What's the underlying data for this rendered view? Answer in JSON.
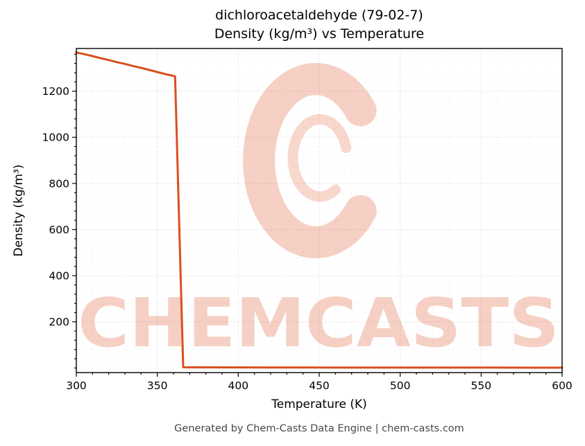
{
  "header": {
    "title_line1": "dichloroacetaldehyde (79-02-7)",
    "title_line2": "Density (kg/m³) vs Temperature"
  },
  "footer": {
    "text": "Generated by Chem-Casts Data Engine | chem-casts.com"
  },
  "watermark": {
    "text": "CHEMCASTS",
    "color": "#e0572b",
    "opacity": 0.28
  },
  "chart_data": {
    "type": "line",
    "title": "dichloroacetaldehyde (79-02-7)\nDensity (kg/m³) vs Temperature",
    "xlabel": "Temperature (K)",
    "ylabel": "Density (kg/m³)",
    "xlim": [
      300,
      600
    ],
    "ylim": [
      -20,
      1385
    ],
    "x_ticks": [
      300,
      350,
      400,
      450,
      500,
      550,
      600
    ],
    "y_ticks": [
      200,
      400,
      600,
      800,
      1000,
      1200
    ],
    "x_minor_step": 10,
    "y_minor_step": 40,
    "grid": true,
    "legend": false,
    "line_color": "#d94f1e",
    "line_width": 3,
    "series": [
      {
        "name": "density",
        "x": [
          300,
          305,
          310,
          315,
          320,
          325,
          330,
          335,
          340,
          345,
          350,
          355,
          360,
          361,
          366,
          370,
          380,
          390,
          400,
          420,
          440,
          460,
          480,
          500,
          520,
          540,
          560,
          580,
          600
        ],
        "y": [
          1368,
          1360,
          1352,
          1343,
          1335,
          1326,
          1318,
          1309,
          1301,
          1292,
          1283,
          1274,
          1266,
          1264,
          3.2,
          2.9,
          2.7,
          2.6,
          2.5,
          2.3,
          2.2,
          2.0,
          1.9,
          1.8,
          1.7,
          1.6,
          1.5,
          1.45,
          1.4
        ]
      }
    ]
  }
}
